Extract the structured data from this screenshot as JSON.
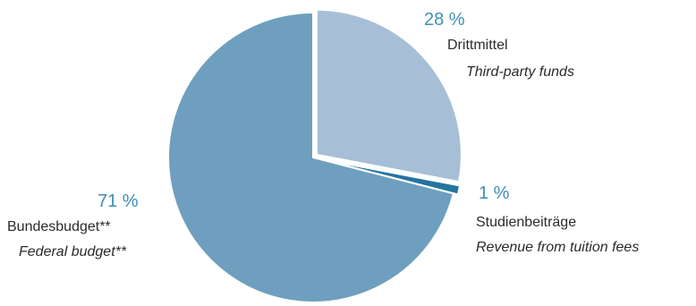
{
  "chart_data": {
    "type": "pie",
    "slices": [
      {
        "percent_label": "28 %",
        "label_de": "Drittmittel",
        "label_en": "Third-party funds",
        "value": 28,
        "color": "#a6bfd7",
        "exploded": true
      },
      {
        "percent_label": "1 %",
        "label_de": "Studienbeiträge",
        "label_en": "Revenue from tuition fees",
        "value": 1,
        "color": "#2474a0",
        "exploded": true
      },
      {
        "percent_label": "71 %",
        "label_de": "Bundesbudget**",
        "label_en": "Federal budget**",
        "value": 71,
        "color": "#6f9fbe",
        "exploded": false
      }
    ],
    "percent_color": "#3d8fb6"
  }
}
